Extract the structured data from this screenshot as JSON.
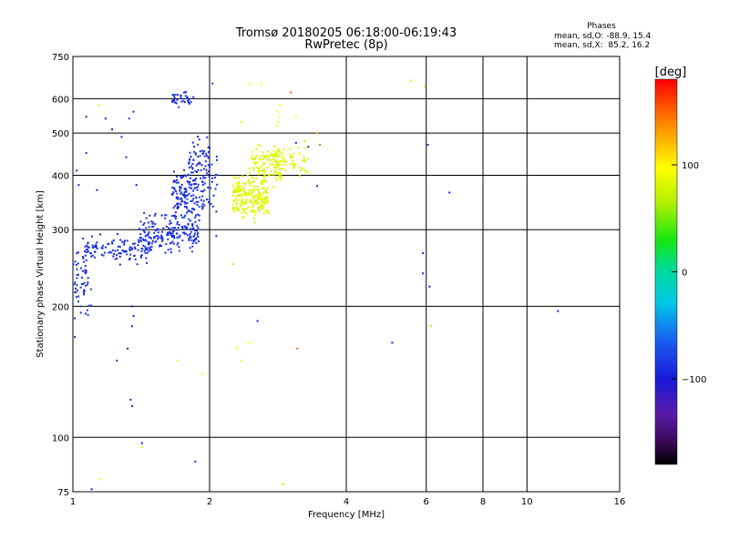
{
  "chart_data": {
    "type": "scatter",
    "title": "Tromsø 20180205 06:18:00-06:19:43",
    "subtitle": "RwPretec (8p)",
    "xlabel": "Frequency [MHz]",
    "ylabel": "Stationary phase Virtual Height [km]",
    "x_scale": "log",
    "y_scale": "log",
    "xlim": [
      1,
      16
    ],
    "ylim": [
      75,
      750
    ],
    "x_ticks": [
      1,
      2,
      4,
      6,
      8,
      10,
      16
    ],
    "x_gridlines": [
      2,
      4,
      6,
      8,
      10
    ],
    "y_ticks": [
      75,
      100,
      200,
      300,
      400,
      500,
      600,
      750
    ],
    "y_gridlines": [
      100,
      200,
      300,
      400,
      500,
      600
    ],
    "grid": true,
    "stats": {
      "heading": "Phases",
      "line1": "mean, sd,O: -88.9, 15.4",
      "line2": "mean, sd,X:  85.2, 16.2"
    },
    "colorbar": {
      "label": "[deg]",
      "min": -180,
      "max": 180,
      "ticks": [
        100,
        0,
        -100
      ],
      "tick_labels": [
        "100",
        "0",
        "−100"
      ]
    },
    "series": [
      {
        "mode": "O",
        "phase_mean": -88.9,
        "phase_sd": 15.4,
        "segments": [
          {
            "x_range": [
              1.0,
              1.1
            ],
            "y_range": [
              175,
              290
            ],
            "count": 55
          },
          {
            "x_range": [
              1.05,
              1.5
            ],
            "y_range": [
              245,
              300
            ],
            "count": 120
          },
          {
            "x_range": [
              1.4,
              1.9
            ],
            "y_range": [
              255,
              340
            ],
            "count": 190
          },
          {
            "x_range": [
              1.65,
              1.95
            ],
            "y_range": [
              300,
              440
            ],
            "count": 150
          },
          {
            "x_range": [
              1.8,
              2.0
            ],
            "y_range": [
              380,
              520
            ],
            "count": 50
          },
          {
            "x_range": [
              1.65,
              1.85
            ],
            "y_range": [
              560,
              640
            ],
            "count": 35
          },
          {
            "x_range": [
              1.95,
              2.08
            ],
            "y_range": [
              300,
              520
            ],
            "count": 25
          }
        ],
        "points": [
          {
            "x": 1.02,
            "y": 410,
            "phase": -100
          },
          {
            "x": 1.07,
            "y": 450,
            "phase": -90
          },
          {
            "x": 1.13,
            "y": 370,
            "phase": -95
          },
          {
            "x": 1.18,
            "y": 540,
            "phase": -95
          },
          {
            "x": 1.31,
            "y": 440,
            "phase": -105
          },
          {
            "x": 1.33,
            "y": 540,
            "phase": -85
          },
          {
            "x": 1.38,
            "y": 380,
            "phase": -100
          },
          {
            "x": 1.36,
            "y": 560,
            "phase": -95
          },
          {
            "x": 1.07,
            "y": 545,
            "phase": -90
          },
          {
            "x": 1.22,
            "y": 510,
            "phase": -100
          },
          {
            "x": 1.28,
            "y": 490,
            "phase": -95
          },
          {
            "x": 1.35,
            "y": 200,
            "phase": -95
          },
          {
            "x": 1.36,
            "y": 190,
            "phase": -100
          },
          {
            "x": 1.35,
            "y": 180,
            "phase": -105
          },
          {
            "x": 1.32,
            "y": 160,
            "phase": -100
          },
          {
            "x": 1.34,
            "y": 122,
            "phase": -90
          },
          {
            "x": 1.35,
            "y": 118,
            "phase": -95
          },
          {
            "x": 1.42,
            "y": 97,
            "phase": -110
          },
          {
            "x": 1.1,
            "y": 76,
            "phase": -100
          },
          {
            "x": 1.86,
            "y": 88,
            "phase": -110
          },
          {
            "x": 2.07,
            "y": 290,
            "phase": -100
          },
          {
            "x": 2.07,
            "y": 330,
            "phase": -95
          },
          {
            "x": 1.93,
            "y": 335,
            "phase": -95
          },
          {
            "x": 2.03,
            "y": 650,
            "phase": -80
          },
          {
            "x": 1.03,
            "y": 380,
            "phase": -95
          },
          {
            "x": 1.01,
            "y": 170,
            "phase": -100
          },
          {
            "x": 1.08,
            "y": 280,
            "phase": -90
          },
          {
            "x": 1.25,
            "y": 150,
            "phase": -95
          },
          {
            "x": 2.55,
            "y": 185,
            "phase": -95
          },
          {
            "x": 5.9,
            "y": 265,
            "phase": -95
          },
          {
            "x": 5.9,
            "y": 238,
            "phase": -95
          },
          {
            "x": 6.05,
            "y": 470,
            "phase": -95
          },
          {
            "x": 6.1,
            "y": 222,
            "phase": -95
          },
          {
            "x": 6.75,
            "y": 365,
            "phase": -100
          },
          {
            "x": 5.05,
            "y": 165,
            "phase": -100
          },
          {
            "x": 11.7,
            "y": 195,
            "phase": -100
          },
          {
            "x": 3.45,
            "y": 378,
            "phase": -120
          },
          {
            "x": 3.1,
            "y": 475,
            "phase": -115
          },
          {
            "x": 3.3,
            "y": 465,
            "phase": -90
          }
        ]
      },
      {
        "mode": "X",
        "phase_mean": 85.2,
        "phase_sd": 16.2,
        "segments": [
          {
            "x_range": [
              2.25,
              2.7
            ],
            "y_range": [
              305,
              420
            ],
            "count": 230
          },
          {
            "x_range": [
              2.45,
              2.9
            ],
            "y_range": [
              360,
              490
            ],
            "count": 120
          },
          {
            "x_range": [
              2.75,
              3.3
            ],
            "y_range": [
              380,
              490
            ],
            "count": 60
          }
        ],
        "points": [
          {
            "x": 2.82,
            "y": 560,
            "phase": 95
          },
          {
            "x": 2.85,
            "y": 545,
            "phase": 100
          },
          {
            "x": 2.83,
            "y": 530,
            "phase": 95
          },
          {
            "x": 2.86,
            "y": 580,
            "phase": 100
          },
          {
            "x": 2.81,
            "y": 520,
            "phase": 90
          },
          {
            "x": 3.02,
            "y": 620,
            "phase": 150
          },
          {
            "x": 3.1,
            "y": 545,
            "phase": 90
          },
          {
            "x": 2.45,
            "y": 650,
            "phase": 100
          },
          {
            "x": 2.6,
            "y": 650,
            "phase": 100
          },
          {
            "x": 2.35,
            "y": 530,
            "phase": 90
          },
          {
            "x": 3.5,
            "y": 470,
            "phase": 150
          },
          {
            "x": 3.45,
            "y": 500,
            "phase": 130
          },
          {
            "x": 2.3,
            "y": 160,
            "phase": 95
          },
          {
            "x": 2.45,
            "y": 165,
            "phase": 100
          },
          {
            "x": 2.35,
            "y": 150,
            "phase": 95
          },
          {
            "x": 3.12,
            "y": 160,
            "phase": 150
          },
          {
            "x": 2.9,
            "y": 78,
            "phase": 120
          },
          {
            "x": 1.93,
            "y": 140,
            "phase": 95
          },
          {
            "x": 1.42,
            "y": 95,
            "phase": 90
          },
          {
            "x": 1.15,
            "y": 80,
            "phase": 100
          },
          {
            "x": 6.15,
            "y": 180,
            "phase": 120
          },
          {
            "x": 5.95,
            "y": 640,
            "phase": 110
          },
          {
            "x": 5.55,
            "y": 660,
            "phase": 80
          },
          {
            "x": 1.14,
            "y": 580,
            "phase": 110
          },
          {
            "x": 1.7,
            "y": 150,
            "phase": 90
          },
          {
            "x": 2.25,
            "y": 250,
            "phase": 70
          }
        ]
      }
    ]
  }
}
